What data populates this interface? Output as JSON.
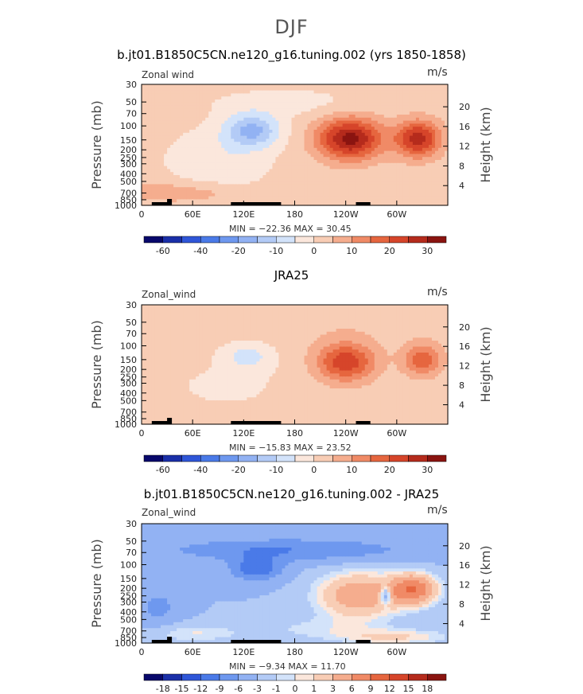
{
  "figure": {
    "title": "DJF"
  },
  "chart_data": [
    {
      "type": "heatmap",
      "title": "b.jt01.B1850C5CN.ne120_g16.tuning.002 (yrs 1850-1858)",
      "subtitle_left": "Zonal wind",
      "units": "m/s",
      "ylabel": "Pressure (mb)",
      "y2label": "Height (km)",
      "y_ticks": [
        "30",
        "50",
        "70",
        "100",
        "150",
        "200",
        "250",
        "300",
        "400",
        "500",
        "700",
        "850",
        "1000"
      ],
      "y2_ticks": [
        "20",
        "16",
        "12",
        "8",
        "4"
      ],
      "x_ticks": [
        "0",
        "60E",
        "120E",
        "180",
        "120W",
        "60W"
      ],
      "stats": "MIN = −22.36   MAX =  30.45",
      "min": -22.36,
      "max": 30.45,
      "colorbar_labels": [
        "-60",
        "-40",
        "-20",
        "-10",
        "0",
        "10",
        "20",
        "30"
      ],
      "colorbar_levels": [
        -70,
        -60,
        -50,
        -40,
        -30,
        -20,
        -15,
        -10,
        -5,
        0,
        5,
        10,
        15,
        20,
        25,
        30,
        35
      ]
    },
    {
      "type": "heatmap",
      "title": "JRA25",
      "subtitle_left": "Zonal_wind",
      "units": "m/s",
      "ylabel": "Pressure (mb)",
      "y2label": "Height (km)",
      "y_ticks": [
        "30",
        "50",
        "70",
        "100",
        "150",
        "200",
        "250",
        "300",
        "400",
        "500",
        "700",
        "850",
        "1000"
      ],
      "y2_ticks": [
        "20",
        "16",
        "12",
        "8",
        "4"
      ],
      "x_ticks": [
        "0",
        "60E",
        "120E",
        "180",
        "120W",
        "60W"
      ],
      "stats": "MIN = −15.83   MAX =  23.52",
      "min": -15.83,
      "max": 23.52,
      "colorbar_labels": [
        "-60",
        "-40",
        "-20",
        "-10",
        "0",
        "10",
        "20",
        "30"
      ],
      "colorbar_levels": [
        -70,
        -60,
        -50,
        -40,
        -30,
        -20,
        -15,
        -10,
        -5,
        0,
        5,
        10,
        15,
        20,
        25,
        30,
        35
      ]
    },
    {
      "type": "heatmap",
      "title": "b.jt01.B1850C5CN.ne120_g16.tuning.002 - JRA25",
      "subtitle_left": "Zonal_wind",
      "units": "m/s",
      "ylabel": "Pressure (mb)",
      "y2label": "Height (km)",
      "y_ticks": [
        "30",
        "50",
        "70",
        "100",
        "150",
        "200",
        "250",
        "300",
        "400",
        "500",
        "700",
        "850",
        "1000"
      ],
      "y2_ticks": [
        "20",
        "16",
        "12",
        "8",
        "4"
      ],
      "x_ticks": [
        "0",
        "60E",
        "120E",
        "180",
        "120W",
        "60W"
      ],
      "stats": "MIN =  −9.34   MAX =  11.70",
      "min": -9.34,
      "max": 11.7,
      "colorbar_labels": [
        "-18",
        "-15",
        "-12",
        "-9",
        "-6",
        "-3",
        "-1",
        "0",
        "1",
        "3",
        "6",
        "9",
        "12",
        "15",
        "18"
      ],
      "colorbar_levels": [
        -21,
        -18,
        -15,
        -12,
        -9,
        -6,
        -3,
        -1,
        0,
        1,
        3,
        6,
        9,
        12,
        15,
        18,
        21
      ]
    }
  ],
  "colors": {
    "scale": [
      "#08086b",
      "#1a2fa8",
      "#2f56d8",
      "#4a7ae8",
      "#6e98ef",
      "#92b2f3",
      "#b3cbf6",
      "#d3e3fa",
      "#fbe7dc",
      "#f8cdb5",
      "#f5ad8e",
      "#f08a66",
      "#e6663f",
      "#d6452a",
      "#b52b1c",
      "#8a1410"
    ],
    "topography": "#000000"
  }
}
